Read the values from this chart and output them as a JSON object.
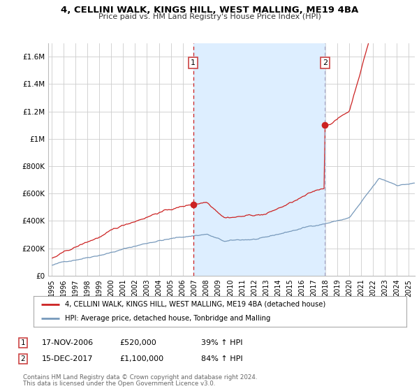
{
  "title": "4, CELLINI WALK, KINGS HILL, WEST MALLING, ME19 4BA",
  "subtitle": "Price paid vs. HM Land Registry's House Price Index (HPI)",
  "legend_line1": "4, CELLINI WALK, KINGS HILL, WEST MALLING, ME19 4BA (detached house)",
  "legend_line2": "HPI: Average price, detached house, Tonbridge and Malling",
  "sale1_label": "1",
  "sale1_date": "17-NOV-2006",
  "sale1_price": "£520,000",
  "sale1_hpi": "39% ↑ HPI",
  "sale1_year": 2006.88,
  "sale1_value": 520000,
  "sale2_label": "2",
  "sale2_date": "15-DEC-2017",
  "sale2_price": "£1,100,000",
  "sale2_hpi": "84% ↑ HPI",
  "sale2_year": 2017.96,
  "sale2_value": 1100000,
  "footer1": "Contains HM Land Registry data © Crown copyright and database right 2024.",
  "footer2": "This data is licensed under the Open Government Licence v3.0.",
  "ylim": [
    0,
    1700000
  ],
  "yticks": [
    0,
    200000,
    400000,
    600000,
    800000,
    1000000,
    1200000,
    1400000,
    1600000
  ],
  "ytick_labels": [
    "£0",
    "£200K",
    "£400K",
    "£600K",
    "£800K",
    "£1M",
    "£1.2M",
    "£1.4M",
    "£1.6M"
  ],
  "line_red_color": "#cc2222",
  "line_blue_color": "#7799bb",
  "shade_color": "#ddeeff",
  "bg_color": "#ffffff",
  "grid_color": "#cccccc"
}
